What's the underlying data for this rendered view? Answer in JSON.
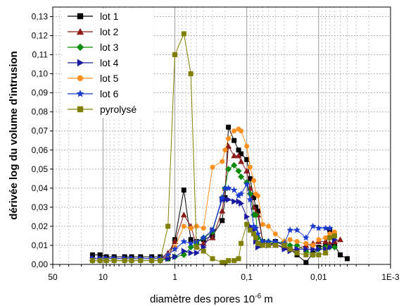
{
  "chart_data": {
    "type": "line",
    "title": "",
    "xlabel": "diamètre des pores 10",
    "xlabel_exponent": "-6",
    "xlabel_unit": " m",
    "ylabel": "dérivée log du volume d'intrusion",
    "x_scale": "log",
    "x_reversed": true,
    "xlim": [
      50,
      0.001
    ],
    "ylim": [
      0,
      0.135
    ],
    "grid": true,
    "legend_position": "top-left",
    "x_ticks": [
      {
        "value": 50,
        "label": "50"
      },
      {
        "value": 10,
        "label": "10"
      },
      {
        "value": 1,
        "label": "1"
      },
      {
        "value": 0.1,
        "label": "0,1"
      },
      {
        "value": 0.01,
        "label": "0,01"
      },
      {
        "value": 0.001,
        "label": "1E-3"
      }
    ],
    "y_ticks": [
      {
        "value": 0.0,
        "label": "0,00"
      },
      {
        "value": 0.01,
        "label": "0,01"
      },
      {
        "value": 0.02,
        "label": "0,02"
      },
      {
        "value": 0.03,
        "label": "0,03"
      },
      {
        "value": 0.04,
        "label": "0,04"
      },
      {
        "value": 0.05,
        "label": "0,05"
      },
      {
        "value": 0.06,
        "label": "0,06"
      },
      {
        "value": 0.07,
        "label": "0,07"
      },
      {
        "value": 0.08,
        "label": "0,08"
      },
      {
        "value": 0.09,
        "label": "0,09"
      },
      {
        "value": 0.1,
        "label": "0,10"
      },
      {
        "value": 0.11,
        "label": "0,11"
      },
      {
        "value": 0.12,
        "label": "0,12"
      },
      {
        "value": 0.13,
        "label": "0,13"
      }
    ],
    "series": [
      {
        "name": "lot 1",
        "color": "#000000",
        "marker": "square",
        "points": [
          [
            14,
            0.005
          ],
          [
            11,
            0.005
          ],
          [
            9,
            0.004
          ],
          [
            7,
            0.004
          ],
          [
            5,
            0.004
          ],
          [
            4,
            0.004
          ],
          [
            3,
            0.004
          ],
          [
            2.1,
            0.004
          ],
          [
            1.6,
            0.004
          ],
          [
            1.25,
            0.003
          ],
          [
            1,
            0.013
          ],
          [
            0.75,
            0.039
          ],
          [
            0.6,
            0.013
          ],
          [
            0.5,
            0.012
          ],
          [
            0.4,
            0.013
          ],
          [
            0.3,
            0.015
          ],
          [
            0.22,
            0.023
          ],
          [
            0.2,
            0.035
          ],
          [
            0.18,
            0.072
          ],
          [
            0.15,
            0.065
          ],
          [
            0.13,
            0.06
          ],
          [
            0.12,
            0.058
          ],
          [
            0.1,
            0.055
          ],
          [
            0.09,
            0.045
          ],
          [
            0.08,
            0.035
          ],
          [
            0.075,
            0.03
          ],
          [
            0.07,
            0.028
          ],
          [
            0.06,
            0.012
          ],
          [
            0.05,
            0.01
          ],
          [
            0.04,
            0.012
          ],
          [
            0.03,
            0.01
          ],
          [
            0.025,
            0.008
          ],
          [
            0.02,
            0.005
          ],
          [
            0.015,
            0.001
          ],
          [
            0.012,
            0.006
          ],
          [
            0.01,
            0.009
          ],
          [
            0.008,
            0.01
          ],
          [
            0.007,
            0.018
          ],
          [
            0.006,
            0.01
          ],
          [
            0.005,
            0.005
          ],
          [
            0.004,
            0.003
          ]
        ]
      },
      {
        "name": "lot 2",
        "color": "#8b1a1a",
        "marker": "triangle-up",
        "points": [
          [
            14,
            0.003
          ],
          [
            11,
            0.003
          ],
          [
            9,
            0.003
          ],
          [
            7,
            0.003
          ],
          [
            5,
            0.003
          ],
          [
            4,
            0.003
          ],
          [
            3,
            0.003
          ],
          [
            2.1,
            0.003
          ],
          [
            1.6,
            0.003
          ],
          [
            1.25,
            0.006
          ],
          [
            1,
            0.012
          ],
          [
            0.75,
            0.026
          ],
          [
            0.6,
            0.02
          ],
          [
            0.5,
            0.01
          ],
          [
            0.4,
            0.011
          ],
          [
            0.3,
            0.014
          ],
          [
            0.22,
            0.028
          ],
          [
            0.2,
            0.04
          ],
          [
            0.18,
            0.062
          ],
          [
            0.15,
            0.057
          ],
          [
            0.13,
            0.057
          ],
          [
            0.12,
            0.054
          ],
          [
            0.1,
            0.049
          ],
          [
            0.09,
            0.04
          ],
          [
            0.08,
            0.03
          ],
          [
            0.075,
            0.027
          ],
          [
            0.07,
            0.026
          ],
          [
            0.06,
            0.012
          ],
          [
            0.05,
            0.01
          ],
          [
            0.04,
            0.01
          ],
          [
            0.03,
            0.009
          ],
          [
            0.025,
            0.008
          ],
          [
            0.02,
            0.008
          ],
          [
            0.015,
            0.01
          ],
          [
            0.012,
            0.011
          ],
          [
            0.01,
            0.012
          ],
          [
            0.008,
            0.012
          ],
          [
            0.007,
            0.011
          ],
          [
            0.006,
            0.012
          ],
          [
            0.005,
            0.013
          ]
        ]
      },
      {
        "name": "lot 3",
        "color": "#0a8a0a",
        "marker": "diamond",
        "points": [
          [
            14,
            0.002
          ],
          [
            11,
            0.002
          ],
          [
            9,
            0.002
          ],
          [
            7,
            0.002
          ],
          [
            5,
            0.002
          ],
          [
            4,
            0.002
          ],
          [
            3,
            0.002
          ],
          [
            2.1,
            0.002
          ],
          [
            1.6,
            0.002
          ],
          [
            1.25,
            0.003
          ],
          [
            1,
            0.004
          ],
          [
            0.75,
            0.005
          ],
          [
            0.6,
            0.009
          ],
          [
            0.5,
            0.011
          ],
          [
            0.4,
            0.014
          ],
          [
            0.3,
            0.017
          ],
          [
            0.22,
            0.035
          ],
          [
            0.2,
            0.04
          ],
          [
            0.18,
            0.05
          ],
          [
            0.15,
            0.052
          ],
          [
            0.13,
            0.049
          ],
          [
            0.12,
            0.046
          ],
          [
            0.1,
            0.043
          ],
          [
            0.09,
            0.037
          ],
          [
            0.08,
            0.026
          ],
          [
            0.075,
            0.026
          ],
          [
            0.07,
            0.014
          ],
          [
            0.06,
            0.012
          ],
          [
            0.05,
            0.012
          ],
          [
            0.04,
            0.011
          ],
          [
            0.03,
            0.012
          ],
          [
            0.025,
            0.01
          ],
          [
            0.02,
            0.01
          ],
          [
            0.015,
            0.007
          ],
          [
            0.012,
            0.005
          ],
          [
            0.01,
            0.008
          ],
          [
            0.008,
            0.009
          ],
          [
            0.007,
            0.009
          ],
          [
            0.006,
            0.009
          ]
        ]
      },
      {
        "name": "lot 4",
        "color": "#1a1aa0",
        "marker": "triangle-right",
        "points": [
          [
            14,
            0.003
          ],
          [
            11,
            0.003
          ],
          [
            9,
            0.003
          ],
          [
            7,
            0.003
          ],
          [
            5,
            0.003
          ],
          [
            4,
            0.003
          ],
          [
            3,
            0.003
          ],
          [
            2.1,
            0.003
          ],
          [
            1.6,
            0.003
          ],
          [
            1.25,
            0.003
          ],
          [
            1,
            0.004
          ],
          [
            0.75,
            0.007
          ],
          [
            0.6,
            0.006
          ],
          [
            0.5,
            0.006
          ],
          [
            0.4,
            0.009
          ],
          [
            0.3,
            0.018
          ],
          [
            0.22,
            0.034
          ],
          [
            0.2,
            0.034
          ],
          [
            0.18,
            0.034
          ],
          [
            0.15,
            0.033
          ],
          [
            0.13,
            0.033
          ],
          [
            0.12,
            0.032
          ],
          [
            0.1,
            0.025
          ],
          [
            0.09,
            0.02
          ],
          [
            0.08,
            0.018
          ],
          [
            0.075,
            0.012
          ],
          [
            0.07,
            0.009
          ],
          [
            0.06,
            0.01
          ],
          [
            0.05,
            0.01
          ],
          [
            0.04,
            0.011
          ],
          [
            0.03,
            0.008
          ],
          [
            0.025,
            0.007
          ],
          [
            0.02,
            0.008
          ],
          [
            0.015,
            0.008
          ],
          [
            0.012,
            0.008
          ],
          [
            0.01,
            0.008
          ],
          [
            0.008,
            0.008
          ],
          [
            0.007,
            0.009
          ],
          [
            0.006,
            0.013
          ]
        ]
      },
      {
        "name": "lot 5",
        "color": "#ff9020",
        "marker": "circle",
        "points": [
          [
            14,
            0.002
          ],
          [
            11,
            0.002
          ],
          [
            9,
            0.002
          ],
          [
            7,
            0.002
          ],
          [
            5,
            0.002
          ],
          [
            4,
            0.002
          ],
          [
            3,
            0.002
          ],
          [
            2.1,
            0.002
          ],
          [
            1.6,
            0.002
          ],
          [
            1.25,
            0.005
          ],
          [
            1,
            0.009
          ],
          [
            0.75,
            0.02
          ],
          [
            0.6,
            0.019
          ],
          [
            0.5,
            0.02
          ],
          [
            0.4,
            0.019
          ],
          [
            0.3,
            0.051
          ],
          [
            0.22,
            0.054
          ],
          [
            0.2,
            0.06
          ],
          [
            0.18,
            0.066
          ],
          [
            0.15,
            0.07
          ],
          [
            0.13,
            0.071
          ],
          [
            0.12,
            0.07
          ],
          [
            0.1,
            0.062
          ],
          [
            0.09,
            0.051
          ],
          [
            0.08,
            0.044
          ],
          [
            0.075,
            0.037
          ],
          [
            0.07,
            0.036
          ],
          [
            0.06,
            0.021
          ],
          [
            0.05,
            0.02
          ],
          [
            0.04,
            0.016
          ],
          [
            0.03,
            0.012
          ],
          [
            0.025,
            0.013
          ],
          [
            0.02,
            0.012
          ],
          [
            0.015,
            0.011
          ],
          [
            0.012,
            0.01
          ],
          [
            0.01,
            0.013
          ],
          [
            0.008,
            0.014
          ],
          [
            0.007,
            0.016
          ],
          [
            0.006,
            0.017
          ]
        ]
      },
      {
        "name": "lot 6",
        "color": "#1a3ad0",
        "marker": "star",
        "points": [
          [
            14,
            0.003
          ],
          [
            11,
            0.003
          ],
          [
            9,
            0.003
          ],
          [
            7,
            0.003
          ],
          [
            5,
            0.003
          ],
          [
            4,
            0.003
          ],
          [
            3,
            0.003
          ],
          [
            2.1,
            0.003
          ],
          [
            1.6,
            0.003
          ],
          [
            1.25,
            0.005
          ],
          [
            1,
            0.008
          ],
          [
            0.75,
            0.012
          ],
          [
            0.6,
            0.011
          ],
          [
            0.5,
            0.012
          ],
          [
            0.4,
            0.014
          ],
          [
            0.3,
            0.018
          ],
          [
            0.22,
            0.035
          ],
          [
            0.2,
            0.04
          ],
          [
            0.18,
            0.04
          ],
          [
            0.15,
            0.039
          ],
          [
            0.13,
            0.036
          ],
          [
            0.12,
            0.037
          ],
          [
            0.1,
            0.042
          ],
          [
            0.09,
            0.034
          ],
          [
            0.08,
            0.02
          ],
          [
            0.075,
            0.019
          ],
          [
            0.07,
            0.016
          ],
          [
            0.06,
            0.012
          ],
          [
            0.05,
            0.012
          ],
          [
            0.04,
            0.012
          ],
          [
            0.03,
            0.011
          ],
          [
            0.025,
            0.018
          ],
          [
            0.02,
            0.018
          ],
          [
            0.015,
            0.014
          ],
          [
            0.012,
            0.02
          ],
          [
            0.01,
            0.019
          ],
          [
            0.008,
            0.019
          ],
          [
            0.007,
            0.019
          ]
        ]
      },
      {
        "name": "pyrolysé",
        "color": "#808000",
        "marker": "square",
        "points": [
          [
            14,
            0.002
          ],
          [
            11,
            0.002
          ],
          [
            9,
            0.002
          ],
          [
            7,
            0.002
          ],
          [
            5,
            0.002
          ],
          [
            4,
            0.002
          ],
          [
            3,
            0.002
          ],
          [
            2.1,
            0.002
          ],
          [
            1.6,
            0.002
          ],
          [
            1.25,
            0.02
          ],
          [
            1,
            0.11
          ],
          [
            0.75,
            0.121
          ],
          [
            0.6,
            0.1
          ],
          [
            0.5,
            0.009
          ],
          [
            0.4,
            0.007
          ],
          [
            0.3,
            0.003
          ],
          [
            0.22,
            0.001
          ],
          [
            0.2,
            0.001
          ],
          [
            0.18,
            0.002
          ],
          [
            0.15,
            0.002
          ],
          [
            0.13,
            0.003
          ],
          [
            0.12,
            0.011
          ],
          [
            0.1,
            0.021
          ],
          [
            0.09,
            0.018
          ],
          [
            0.08,
            0.016
          ],
          [
            0.075,
            0.014
          ],
          [
            0.07,
            0.011
          ],
          [
            0.06,
            0.01
          ],
          [
            0.05,
            0.01
          ],
          [
            0.04,
            0.01
          ],
          [
            0.03,
            0.01
          ],
          [
            0.025,
            0.008
          ],
          [
            0.02,
            0.006
          ],
          [
            0.015,
            0.005
          ],
          [
            0.012,
            0.005
          ],
          [
            0.01,
            0.005
          ],
          [
            0.008,
            0.006
          ],
          [
            0.007,
            0.014
          ],
          [
            0.006,
            0.015
          ]
        ]
      }
    ]
  }
}
